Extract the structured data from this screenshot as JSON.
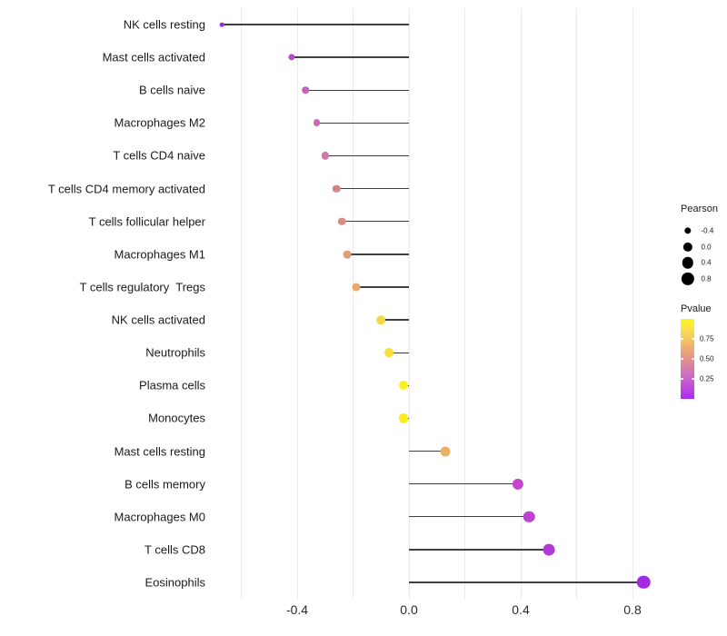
{
  "chart_data": {
    "type": "lollipop",
    "base_type": "scatter",
    "title": "",
    "xlabel": "",
    "ylabel": "",
    "orientation": "horizontal",
    "xlim": [
      -0.72,
      0.92
    ],
    "x_ticks": [
      {
        "label": "-0.4",
        "value": -0.4
      },
      {
        "label": "0.0",
        "value": 0.0
      },
      {
        "label": "0.4",
        "value": 0.4
      },
      {
        "label": "0.8",
        "value": 0.8
      }
    ],
    "gridline_values": [
      -0.6,
      -0.4,
      -0.2,
      0.0,
      0.2,
      0.4,
      0.6,
      0.8
    ],
    "grid": "vertical-only",
    "categories": [
      "NK cells resting",
      "Mast cells activated",
      "B cells naive",
      "Macrophages M2",
      "T cells CD4 naive",
      "T cells CD4 memory activated",
      "T cells follicular helper",
      "Macrophages M1",
      "T cells regulatory  Tregs",
      "NK cells activated",
      "Neutrophils",
      "Plasma cells",
      "Monocytes",
      "Mast cells resting",
      "B cells memory",
      "Macrophages M0",
      "T cells CD8",
      "Eosinophils"
    ],
    "points": [
      {
        "label": "NK cells resting",
        "pearson": -0.67,
        "pvalue": 0.1,
        "color": "#9232DE"
      },
      {
        "label": "Mast cells activated",
        "pearson": -0.42,
        "pvalue": 0.27,
        "color": "#B54FC8"
      },
      {
        "label": "B cells naive",
        "pearson": -0.37,
        "pvalue": 0.32,
        "color": "#C263C0"
      },
      {
        "label": "Macrophages M2",
        "pearson": -0.33,
        "pvalue": 0.36,
        "color": "#C968B8"
      },
      {
        "label": "T cells CD4 naive",
        "pearson": -0.3,
        "pvalue": 0.42,
        "color": "#D078A6"
      },
      {
        "label": "T cells CD4 memory activated",
        "pearson": -0.26,
        "pvalue": 0.46,
        "color": "#D6838F"
      },
      {
        "label": "T cells follicular helper",
        "pearson": -0.24,
        "pvalue": 0.48,
        "color": "#DA8A85"
      },
      {
        "label": "Macrophages M1",
        "pearson": -0.22,
        "pvalue": 0.55,
        "color": "#E09B78"
      },
      {
        "label": "T cells regulatory  Tregs",
        "pearson": -0.19,
        "pvalue": 0.6,
        "color": "#E8A96B"
      },
      {
        "label": "NK cells activated",
        "pearson": -0.1,
        "pvalue": 0.78,
        "color": "#F5D84B"
      },
      {
        "label": "Neutrophils",
        "pearson": -0.07,
        "pvalue": 0.82,
        "color": "#F8DF3A"
      },
      {
        "label": "Plasma cells",
        "pearson": -0.02,
        "pvalue": 0.92,
        "color": "#FAF020"
      },
      {
        "label": "Monocytes",
        "pearson": -0.02,
        "pvalue": 0.92,
        "color": "#FAEE19"
      },
      {
        "label": "Mast cells resting",
        "pearson": 0.13,
        "pvalue": 0.63,
        "color": "#E9B163"
      },
      {
        "label": "B cells memory",
        "pearson": 0.39,
        "pvalue": 0.24,
        "color": "#C347C9"
      },
      {
        "label": "Macrophages M0",
        "pearson": 0.43,
        "pvalue": 0.22,
        "color": "#BE41D0"
      },
      {
        "label": "T cells CD8",
        "pearson": 0.5,
        "pvalue": 0.18,
        "color": "#B43AD8"
      },
      {
        "label": "Eosinophils",
        "pearson": 0.84,
        "pvalue": 0.03,
        "color": "#A22BE2"
      }
    ],
    "legend_position": "right"
  },
  "legend_pearson": {
    "title": "Pearson",
    "entries": [
      {
        "label": "-0.4",
        "value": -0.4
      },
      {
        "label": "0.0",
        "value": 0.0
      },
      {
        "label": "0.4",
        "value": 0.4
      },
      {
        "label": "0.8",
        "value": 0.8
      }
    ],
    "dot_color": "#000000"
  },
  "legend_pvalue": {
    "title": "Pvalue",
    "labels": [
      {
        "label": "0.75",
        "value": 0.75
      },
      {
        "label": "0.50",
        "value": 0.5
      },
      {
        "label": "0.25",
        "value": 0.25
      }
    ],
    "bar_range": [
      0.0,
      1.0
    ],
    "gradient_bottom_to_top": [
      {
        "stop": 0,
        "color": "#AC29F5"
      },
      {
        "stop": 18,
        "color": "#C155D6"
      },
      {
        "stop": 30,
        "color": "#CE6DC0"
      },
      {
        "stop": 50,
        "color": "#E2928A"
      },
      {
        "stop": 66,
        "color": "#EEB36F"
      },
      {
        "stop": 78,
        "color": "#F5CE62"
      },
      {
        "stop": 92,
        "color": "#FAE93C"
      },
      {
        "stop": 100,
        "color": "#FCF621"
      }
    ]
  },
  "colors": {
    "stem": "#3f3f3f",
    "gridline": "#eaeaea",
    "axis_text": "#2b2b2b",
    "background": "#ffffff"
  }
}
